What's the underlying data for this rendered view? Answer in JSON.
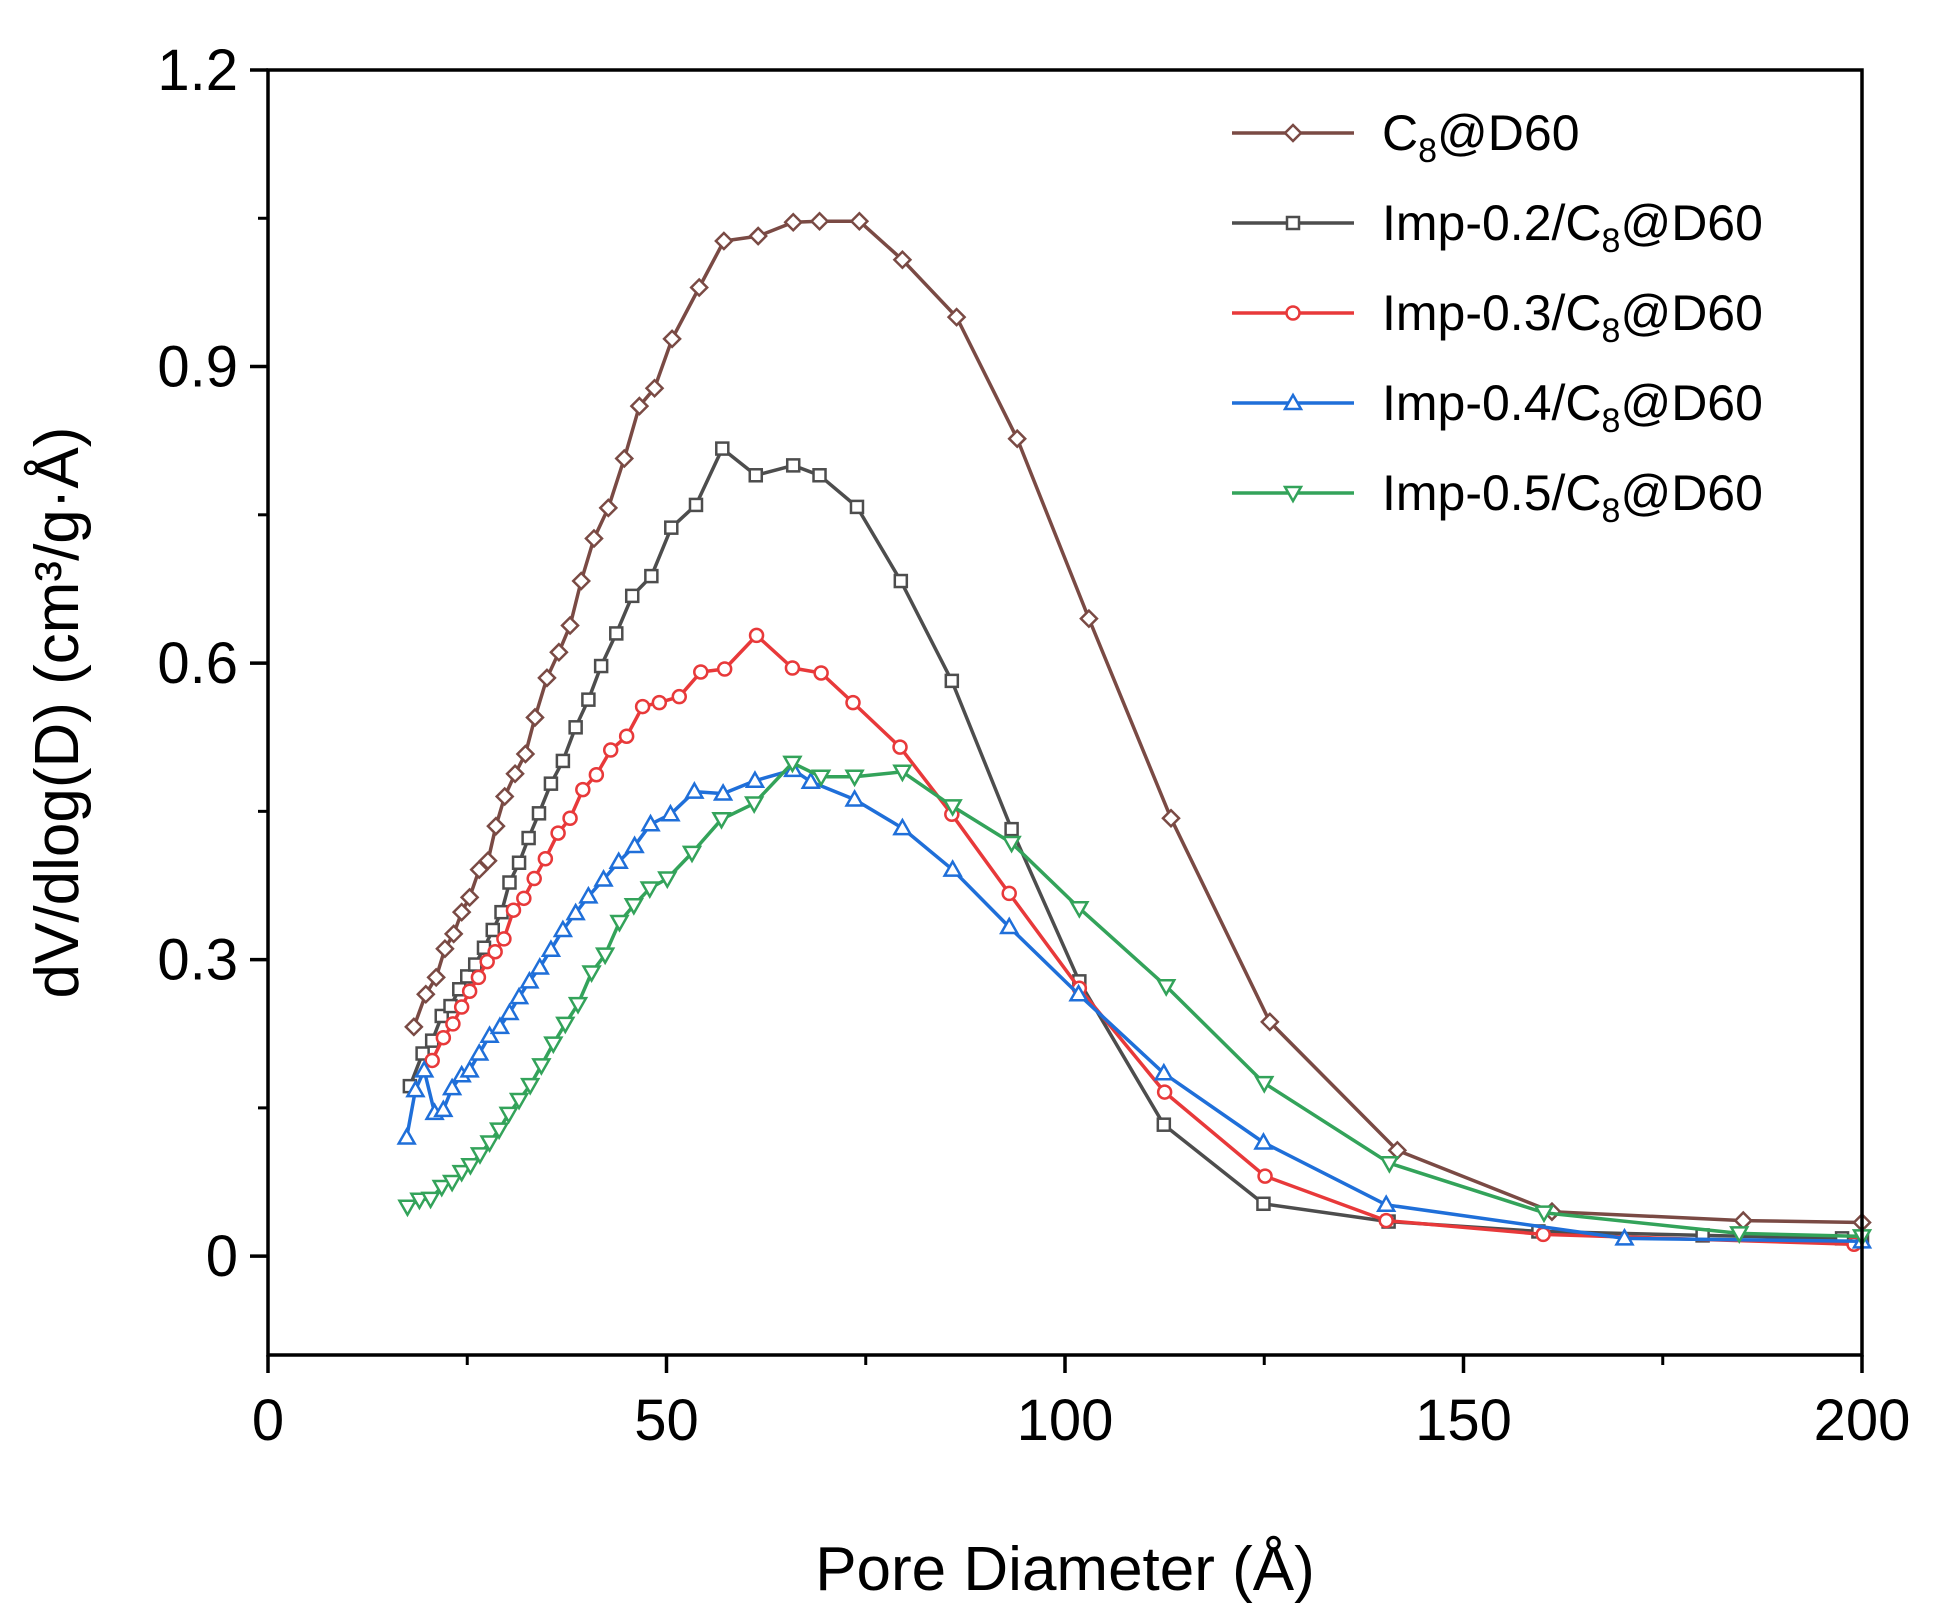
{
  "chart_data": {
    "type": "line",
    "xlabel": "Pore Diameter (Å)",
    "ylabel": "dV/dlog(D) (cm³/g·Å)",
    "xlim": [
      0,
      200
    ],
    "ylim": [
      -0.1,
      1.2
    ],
    "xticks": [
      0,
      50,
      100,
      150,
      200
    ],
    "xtick_labels": [
      "0",
      "50",
      "100",
      "150",
      "200"
    ],
    "yticks": [
      0,
      0.3,
      0.6,
      0.9,
      1.2
    ],
    "ytick_labels": [
      "0",
      "0.3",
      "0.6",
      "0.9",
      "1.2"
    ],
    "legend_position": "top-right",
    "grid": false,
    "series": [
      {
        "name": "C8@D60",
        "legend_prefix": "C",
        "legend_sub": "8",
        "legend_suffix": "@D60",
        "color": "#7a4a44",
        "marker": "diamond",
        "x": [
          18.3,
          19.8,
          21.1,
          22.2,
          23.3,
          24.3,
          25.3,
          26.5,
          27.6,
          28.6,
          29.7,
          31.0,
          32.3,
          33.5,
          35.0,
          36.5,
          37.9,
          39.3,
          40.9,
          42.7,
          44.7,
          46.6,
          48.5,
          50.7,
          54.1,
          57.2,
          61.5,
          65.9,
          69.2,
          74.2,
          79.6,
          86.4,
          94.0,
          103.0,
          113.3,
          125.7,
          141.7,
          161.1,
          185.1,
          200
        ],
        "y": [
          0.232,
          0.265,
          0.282,
          0.311,
          0.326,
          0.348,
          0.363,
          0.391,
          0.4,
          0.435,
          0.465,
          0.488,
          0.508,
          0.545,
          0.585,
          0.611,
          0.638,
          0.683,
          0.726,
          0.757,
          0.807,
          0.86,
          0.878,
          0.928,
          0.98,
          1.027,
          1.032,
          1.046,
          1.047,
          1.047,
          1.008,
          0.95,
          0.827,
          0.645,
          0.443,
          0.237,
          0.107,
          0.045,
          0.036,
          0.034
        ]
      },
      {
        "name": "Imp-0.2/C8@D60",
        "legend_prefix": "Imp-0.2/C",
        "legend_sub": "8",
        "legend_suffix": "@D60",
        "color": "#4d4d4d",
        "marker": "square",
        "x": [
          17.8,
          19.4,
          20.6,
          21.8,
          22.9,
          24.0,
          25.0,
          26.0,
          27.1,
          28.2,
          29.3,
          30.3,
          31.5,
          32.7,
          34.0,
          35.5,
          37.0,
          38.6,
          40.2,
          41.8,
          43.7,
          45.7,
          48.1,
          50.6,
          53.7,
          57.0,
          61.2,
          65.9,
          69.2,
          73.9,
          79.4,
          85.8,
          93.3,
          101.8,
          112.4,
          124.9,
          140.6,
          159.4,
          180.0,
          197.5,
          200
        ],
        "y": [
          0.172,
          0.205,
          0.218,
          0.243,
          0.253,
          0.27,
          0.283,
          0.295,
          0.312,
          0.33,
          0.348,
          0.378,
          0.398,
          0.423,
          0.448,
          0.478,
          0.501,
          0.535,
          0.563,
          0.597,
          0.63,
          0.668,
          0.688,
          0.737,
          0.76,
          0.817,
          0.79,
          0.8,
          0.79,
          0.758,
          0.683,
          0.582,
          0.432,
          0.278,
          0.133,
          0.053,
          0.035,
          0.025,
          0.021,
          0.018,
          0.018
        ]
      },
      {
        "name": "Imp-0.3/C8@D60",
        "legend_prefix": "Imp-0.3/C",
        "legend_sub": "8",
        "legend_suffix": "@D60",
        "color": "#e8393a",
        "marker": "circle",
        "x": [
          20.6,
          22.0,
          23.2,
          24.3,
          25.3,
          26.4,
          27.5,
          28.5,
          29.6,
          30.8,
          32.1,
          33.4,
          34.8,
          36.4,
          37.9,
          39.5,
          41.2,
          43.0,
          45.0,
          47.0,
          49.1,
          51.6,
          54.3,
          57.3,
          61.3,
          65.8,
          69.4,
          73.4,
          79.3,
          85.8,
          93.0,
          101.8,
          112.5,
          125.1,
          140.3,
          160.0,
          199.0
        ],
        "y": [
          0.198,
          0.221,
          0.235,
          0.252,
          0.268,
          0.282,
          0.298,
          0.308,
          0.321,
          0.35,
          0.362,
          0.382,
          0.402,
          0.428,
          0.443,
          0.472,
          0.487,
          0.512,
          0.526,
          0.556,
          0.56,
          0.566,
          0.591,
          0.594,
          0.628,
          0.595,
          0.59,
          0.56,
          0.515,
          0.447,
          0.367,
          0.271,
          0.166,
          0.081,
          0.036,
          0.022,
          0.012
        ]
      },
      {
        "name": "Imp-0.4/C8@D60",
        "legend_prefix": "Imp-0.4/C",
        "legend_sub": "8",
        "legend_suffix": "@D60",
        "color": "#1f6fd9",
        "marker": "triangle-up",
        "x": [
          17.4,
          18.5,
          19.6,
          20.9,
          22.0,
          23.1,
          24.3,
          25.3,
          26.5,
          27.8,
          29.1,
          30.3,
          31.5,
          32.8,
          34.1,
          35.5,
          37.0,
          38.6,
          40.2,
          42.1,
          44.0,
          46.0,
          48.0,
          50.5,
          53.5,
          57.1,
          61.1,
          65.9,
          68.1,
          73.6,
          79.6,
          85.9,
          93.0,
          101.7,
          112.4,
          124.9,
          140.3,
          170.2,
          200
        ],
        "y": [
          0.12,
          0.168,
          0.188,
          0.145,
          0.148,
          0.17,
          0.183,
          0.188,
          0.205,
          0.223,
          0.232,
          0.246,
          0.262,
          0.278,
          0.292,
          0.31,
          0.33,
          0.347,
          0.364,
          0.381,
          0.399,
          0.415,
          0.437,
          0.447,
          0.47,
          0.468,
          0.481,
          0.492,
          0.48,
          0.462,
          0.433,
          0.391,
          0.333,
          0.265,
          0.185,
          0.115,
          0.052,
          0.018,
          0.015
        ]
      },
      {
        "name": "Imp-0.5/C8@D60",
        "legend_prefix": "Imp-0.5/C",
        "legend_sub": "8",
        "legend_suffix": "@D60",
        "color": "#33a35a",
        "marker": "triangle-down",
        "x": [
          17.5,
          19.0,
          20.4,
          21.8,
          23.1,
          24.3,
          25.4,
          26.6,
          27.8,
          29.0,
          30.2,
          31.5,
          32.9,
          34.3,
          35.8,
          37.3,
          38.9,
          40.6,
          42.3,
          44.1,
          45.9,
          47.9,
          50.1,
          53.2,
          56.9,
          61.0,
          65.8,
          69.4,
          73.6,
          79.6,
          85.9,
          93.3,
          101.8,
          112.7,
          125.0,
          140.7,
          160.1,
          184.6,
          200
        ],
        "y": [
          0.05,
          0.057,
          0.058,
          0.07,
          0.075,
          0.085,
          0.092,
          0.103,
          0.115,
          0.128,
          0.144,
          0.158,
          0.173,
          0.193,
          0.215,
          0.235,
          0.255,
          0.287,
          0.305,
          0.338,
          0.355,
          0.372,
          0.382,
          0.408,
          0.442,
          0.458,
          0.499,
          0.485,
          0.485,
          0.49,
          0.455,
          0.418,
          0.352,
          0.273,
          0.175,
          0.094,
          0.044,
          0.023,
          0.02
        ]
      }
    ]
  }
}
